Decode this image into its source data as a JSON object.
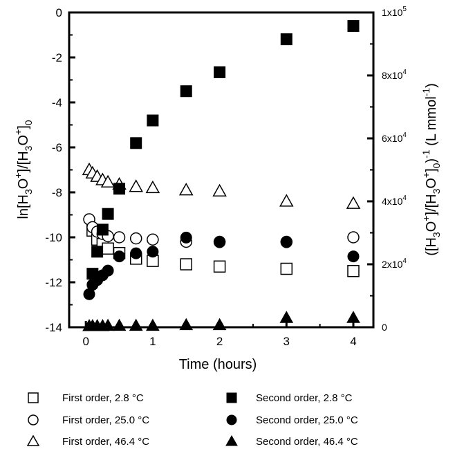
{
  "chart_data": {
    "type": "scatter",
    "title": "",
    "xlabel": "Time (hours)",
    "ylabel_left": "ln[H3O+]/[H3O+]0",
    "ylabel_right": "([H3O+]/[H3O+]0)-1 (L mmol-1)",
    "xlim": [
      -0.25,
      4.3
    ],
    "ylim_left": [
      -14,
      0
    ],
    "ylim_right": [
      0,
      100000
    ],
    "x_ticks": [
      0,
      1,
      2,
      3,
      4
    ],
    "x_tick_labels": [
      "0",
      "1",
      "2",
      "3",
      "4"
    ],
    "y_left_ticks": [
      0,
      -2,
      -4,
      -6,
      -8,
      -10,
      -12,
      -14
    ],
    "y_left_tick_labels": [
      "0",
      "-2",
      "-4",
      "-6",
      "-8",
      "-10",
      "-12",
      "-14"
    ],
    "y_right_ticks": [
      0,
      20000,
      40000,
      60000,
      80000,
      100000
    ],
    "y_right_tick_labels": [
      "0",
      "2x10^4",
      "4x10^4",
      "6x10^4",
      "8x10^4",
      "1x10^5"
    ],
    "grid": false,
    "legend_position": "bottom",
    "series": [
      {
        "name": "First order, 2.8 °C",
        "marker": "square-open",
        "axis": "left",
        "x": [
          0.1,
          0.17,
          0.25,
          0.33,
          0.5,
          0.75,
          1.0,
          1.5,
          2.0,
          3.0,
          4.0
        ],
        "y": [
          -9.7,
          -10.1,
          -10.3,
          -10.5,
          -10.7,
          -10.95,
          -11.05,
          -11.2,
          -11.3,
          -11.4,
          -11.5
        ]
      },
      {
        "name": "First order, 25.0 °C",
        "marker": "circle-open",
        "axis": "left",
        "x": [
          0.05,
          0.1,
          0.17,
          0.25,
          0.33,
          0.5,
          0.75,
          1.0,
          1.5,
          2.0,
          3.0,
          4.0
        ],
        "y": [
          -9.2,
          -9.55,
          -9.75,
          -9.85,
          -9.95,
          -10.0,
          -10.05,
          -10.1,
          -10.2,
          -10.2,
          -10.2,
          -10.0
        ]
      },
      {
        "name": "First order, 46.4 °C",
        "marker": "triangle-open",
        "axis": "left",
        "x": [
          0.05,
          0.1,
          0.17,
          0.25,
          0.33,
          0.5,
          0.75,
          1.0,
          1.5,
          2.0,
          3.0,
          4.0
        ],
        "y": [
          -7.0,
          -7.15,
          -7.3,
          -7.45,
          -7.55,
          -7.65,
          -7.75,
          -7.8,
          -7.9,
          -7.95,
          -8.4,
          -8.5
        ]
      },
      {
        "name": "Second order, 2.8 °C",
        "marker": "square-filled",
        "axis": "right",
        "x": [
          0.1,
          0.17,
          0.25,
          0.33,
          0.5,
          0.75,
          1.0,
          1.5,
          2.0,
          3.0,
          4.0
        ],
        "y": [
          17000,
          24000,
          31000,
          36000,
          44000,
          58500,
          65700,
          75000,
          81000,
          91500,
          95700
        ]
      },
      {
        "name": "Second order, 25.0 °C",
        "marker": "circle-filled",
        "axis": "right",
        "x": [
          0.05,
          0.1,
          0.17,
          0.25,
          0.33,
          0.5,
          0.75,
          1.0,
          1.5,
          2.0,
          3.0,
          4.0
        ],
        "y": [
          10500,
          13500,
          15000,
          16500,
          18000,
          22500,
          23500,
          24000,
          28500,
          27000,
          27000,
          22500
        ]
      },
      {
        "name": "Second order, 46.4 °C",
        "marker": "triangle-filled",
        "axis": "right",
        "x": [
          0.05,
          0.1,
          0.17,
          0.25,
          0.33,
          0.5,
          0.75,
          1.0,
          1.5,
          2.0,
          3.0,
          4.0
        ],
        "y": [
          400,
          400,
          400,
          400,
          500,
          500,
          500,
          500,
          700,
          700,
          3000,
          3000
        ]
      }
    ]
  }
}
